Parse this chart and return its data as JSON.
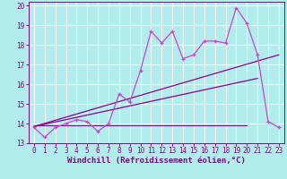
{
  "title": "",
  "xlabel": "Windchill (Refroidissement éolien,°C)",
  "ylabel": "",
  "xlim": [
    -0.5,
    23.5
  ],
  "ylim": [
    13,
    20.2
  ],
  "yticks": [
    13,
    14,
    15,
    16,
    17,
    18,
    19,
    20
  ],
  "xticks": [
    0,
    1,
    2,
    3,
    4,
    5,
    6,
    7,
    8,
    9,
    10,
    11,
    12,
    13,
    14,
    15,
    16,
    17,
    18,
    19,
    20,
    21,
    22,
    23
  ],
  "background_color": "#b2eded",
  "grid_color": "#d0f0f0",
  "line_color_dark": "#880088",
  "line_color_bright": "#cc44cc",
  "series1_x": [
    0,
    1,
    2,
    3,
    4,
    5,
    6,
    7,
    8,
    9,
    10,
    11,
    12,
    13,
    14,
    15,
    16,
    17,
    18,
    19,
    20,
    21,
    22,
    23
  ],
  "series1_y": [
    13.8,
    13.3,
    13.8,
    14.0,
    14.2,
    14.1,
    13.6,
    14.0,
    15.5,
    15.1,
    16.7,
    18.7,
    18.1,
    18.7,
    17.3,
    17.5,
    18.2,
    18.2,
    18.1,
    19.9,
    19.1,
    17.5,
    14.1,
    13.8
  ],
  "linear1": [
    [
      0,
      13.85
    ],
    [
      21,
      16.3
    ]
  ],
  "linear2": [
    [
      0,
      13.85
    ],
    [
      23,
      17.5
    ]
  ],
  "flat_line": [
    [
      0,
      13.9
    ],
    [
      20,
      13.9
    ]
  ],
  "font_color": "#880088",
  "tick_fontsize": 5.5,
  "label_fontsize": 6.5
}
